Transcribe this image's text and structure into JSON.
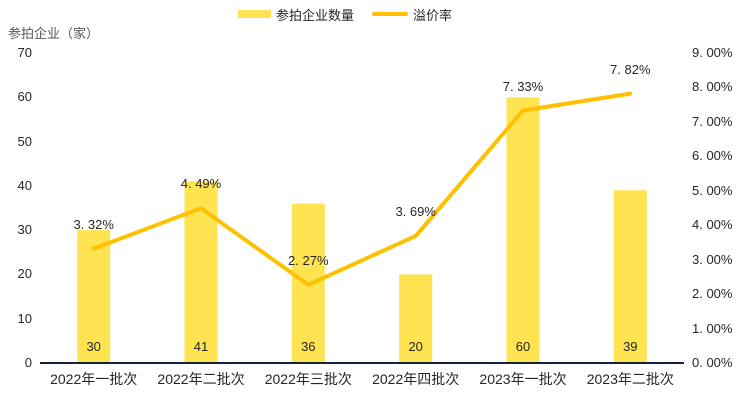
{
  "chart_data": {
    "type": "bar+line",
    "categories": [
      "2022年一批次",
      "2022年二批次",
      "2022年三批次",
      "2022年四批次",
      "2023年一批次",
      "2023年二批次"
    ],
    "series": [
      {
        "name": "参拍企业数量",
        "type": "bar",
        "axis": "left",
        "values": [
          30,
          41,
          36,
          20,
          60,
          39
        ],
        "labels": [
          "30",
          "41",
          "36",
          "20",
          "60",
          "39"
        ],
        "color": "#FFE350"
      },
      {
        "name": "溢价率",
        "type": "line",
        "axis": "right",
        "values": [
          3.32,
          4.49,
          2.27,
          3.69,
          7.33,
          7.82
        ],
        "labels": [
          "3. 32%",
          "4. 49%",
          "2. 27%",
          "3. 69%",
          "7. 33%",
          "7. 82%"
        ],
        "color": "#FFC000"
      }
    ],
    "left_axis": {
      "title": "参拍企业（家）",
      "ticks": [
        70,
        60,
        50,
        40,
        30,
        20,
        10,
        0
      ]
    },
    "right_axis": {
      "ticks": [
        "9. 00%",
        "8. 00%",
        "7. 00%",
        "6. 00%",
        "5. 00%",
        "4. 00%",
        "3. 00%",
        "2. 00%",
        "1. 00%",
        "0. 00%"
      ]
    },
    "left_ylim": [
      0,
      70
    ],
    "right_ylim": [
      0,
      9
    ],
    "grid": false,
    "legend_position": "top"
  },
  "colors": {
    "axis_line": "#16213E",
    "text": "#262626",
    "axis_title": "#595959"
  }
}
